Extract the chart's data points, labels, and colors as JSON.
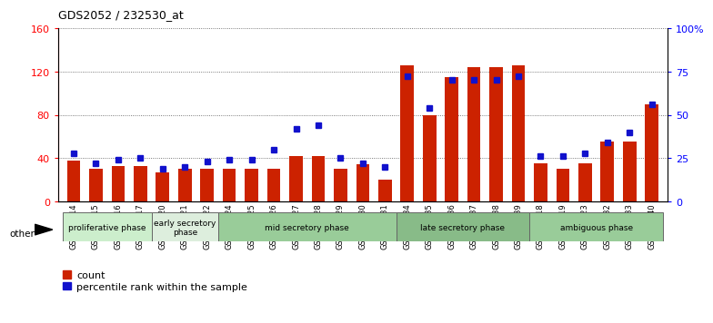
{
  "title": "GDS2052 / 232530_at",
  "samples": [
    "GSM109814",
    "GSM109815",
    "GSM109816",
    "GSM109817",
    "GSM109820",
    "GSM109821",
    "GSM109822",
    "GSM109824",
    "GSM109825",
    "GSM109826",
    "GSM109827",
    "GSM109828",
    "GSM109829",
    "GSM109830",
    "GSM109831",
    "GSM109834",
    "GSM109835",
    "GSM109836",
    "GSM109837",
    "GSM109838",
    "GSM109839",
    "GSM109818",
    "GSM109819",
    "GSM109823",
    "GSM109832",
    "GSM109833",
    "GSM109840"
  ],
  "counts": [
    38,
    30,
    33,
    33,
    27,
    30,
    30,
    30,
    30,
    30,
    42,
    42,
    30,
    34,
    20,
    126,
    80,
    115,
    124,
    124,
    126,
    35,
    30,
    35,
    55,
    55,
    90
  ],
  "percentile": [
    28,
    22,
    24,
    25,
    19,
    20,
    23,
    24,
    24,
    30,
    42,
    44,
    25,
    22,
    20,
    72,
    54,
    70,
    70,
    70,
    72,
    26,
    26,
    28,
    34,
    40,
    56
  ],
  "ylim_left": [
    0,
    160
  ],
  "ylim_right": [
    0,
    100
  ],
  "yticks_left": [
    0,
    40,
    80,
    120,
    160
  ],
  "yticks_right": [
    0,
    25,
    50,
    75,
    100
  ],
  "ytick_labels_right": [
    "0",
    "25",
    "50",
    "75",
    "100%"
  ],
  "bar_color": "#cc2200",
  "percentile_color": "#1111cc",
  "phases": [
    {
      "label": "proliferative phase",
      "start": 0,
      "end": 4,
      "color": "#cceecc"
    },
    {
      "label": "early secretory\nphase",
      "start": 4,
      "end": 7,
      "color": "#ddeedd"
    },
    {
      "label": "mid secretory phase",
      "start": 7,
      "end": 15,
      "color": "#99cc99"
    },
    {
      "label": "late secretory phase",
      "start": 15,
      "end": 21,
      "color": "#88bb88"
    },
    {
      "label": "ambiguous phase",
      "start": 21,
      "end": 27,
      "color": "#99cc99"
    }
  ],
  "plot_bg": "#ffffff",
  "fig_bg": "#ffffff",
  "other_label": "other",
  "legend_count_label": "count",
  "legend_pct_label": "percentile rank within the sample"
}
